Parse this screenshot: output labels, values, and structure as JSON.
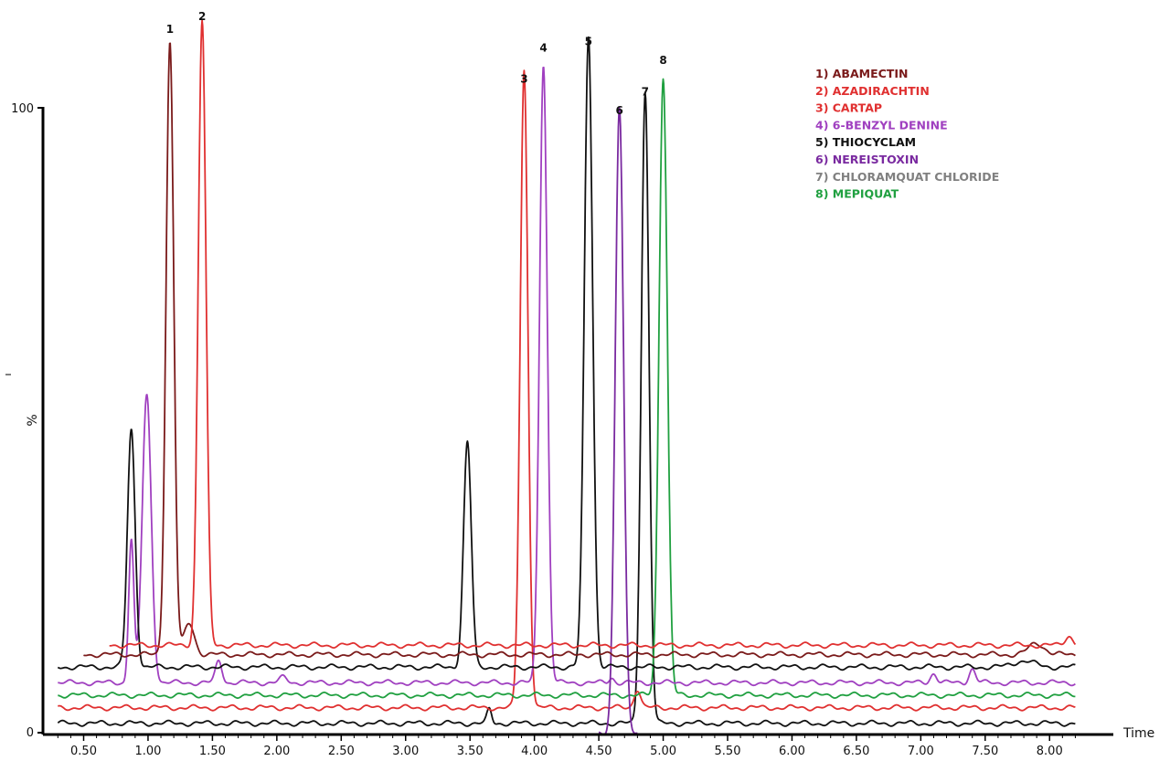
{
  "chart_data": {
    "type": "line",
    "xlabel": "Time",
    "ylabel": "%",
    "xlim": [
      0.3,
      8.2
    ],
    "ylim": [
      0,
      100
    ],
    "x_ticks": [
      "0.50",
      "1.00",
      "1.50",
      "2.00",
      "2.50",
      "3.00",
      "3.50",
      "4.00",
      "4.50",
      "5.00",
      "5.50",
      "6.00",
      "6.50",
      "7.00",
      "7.50",
      "8.00"
    ],
    "y_ticks": [
      "0",
      "100"
    ],
    "grid": false,
    "legend_position": "top-right",
    "legend": [
      {
        "label": "1) ABAMECTIN",
        "color": "#7a1a1a"
      },
      {
        "label": "2) AZADIRACHTIN",
        "color": "#e03030"
      },
      {
        "label": "3) CARTAP",
        "color": "#e03030"
      },
      {
        "label": "4) 6-BENZYL DENINE",
        "color": "#a040c0"
      },
      {
        "label": "5) THIOCYCLAM",
        "color": "#111111"
      },
      {
        "label": "6) NEREISTOXIN",
        "color": "#7a2aa0"
      },
      {
        "label": "7) CHLORAMQUAT CHLORIDE",
        "color": "#808080"
      },
      {
        "label": "8) MEPIQUAT",
        "color": "#20a040"
      }
    ],
    "peak_labels": [
      {
        "label": "1",
        "x": 1.17,
        "y": 112
      },
      {
        "label": "2",
        "x": 1.42,
        "y": 114
      },
      {
        "label": "3",
        "x": 3.92,
        "y": 104
      },
      {
        "label": "4",
        "x": 4.07,
        "y": 109
      },
      {
        "label": "5",
        "x": 4.42,
        "y": 110
      },
      {
        "label": "6",
        "x": 4.66,
        "y": 99
      },
      {
        "label": "7",
        "x": 4.86,
        "y": 102
      },
      {
        "label": "8",
        "x": 5.0,
        "y": 107
      }
    ],
    "series": [
      {
        "color": "#111111",
        "baseline": 1.5,
        "start": 0.3,
        "end": 8.2,
        "peaks": [
          [
            3.65,
            2.2,
            0.018
          ],
          [
            4.86,
            101,
            0.03
          ]
        ]
      },
      {
        "color": "#e03030",
        "baseline": 4.0,
        "start": 0.3,
        "end": 8.2,
        "peaks": [
          [
            3.92,
            102,
            0.03
          ],
          [
            4.8,
            3.0,
            0.025
          ]
        ]
      },
      {
        "color": "#20a040",
        "baseline": 6.0,
        "start": 0.3,
        "end": 8.2,
        "peaks": [
          [
            5.0,
            99,
            0.032
          ]
        ]
      },
      {
        "color": "#a040c0",
        "baseline": 8.0,
        "start": 0.3,
        "end": 8.2,
        "peaks": [
          [
            0.87,
            23,
            0.02
          ],
          [
            0.99,
            46,
            0.035
          ],
          [
            1.55,
            3.5,
            0.025
          ],
          [
            2.05,
            0.8,
            0.03
          ],
          [
            4.07,
            99,
            0.03
          ],
          [
            4.6,
            0.8,
            0.02
          ],
          [
            7.1,
            1.5,
            0.025
          ],
          [
            7.4,
            2.2,
            0.025
          ]
        ]
      },
      {
        "color": "#7a2aa0",
        "baseline": 0.0,
        "start": 4.5,
        "end": 4.8,
        "peaks": [
          [
            4.66,
            100,
            0.032
          ]
        ]
      },
      {
        "color": "#111111",
        "baseline": 10.5,
        "start": 0.3,
        "end": 8.2,
        "peaks": [
          [
            0.87,
            38,
            0.03
          ],
          [
            3.48,
            36,
            0.03
          ],
          [
            4.42,
            101,
            0.032
          ],
          [
            7.8,
            1.0,
            0.08
          ]
        ]
      },
      {
        "color": "#7a1a1a",
        "baseline": 12.5,
        "start": 0.5,
        "end": 8.2,
        "peaks": [
          [
            1.17,
            98,
            0.03
          ],
          [
            1.32,
            5.0,
            0.04
          ],
          [
            7.9,
            1.8,
            0.06
          ]
        ]
      },
      {
        "color": "#e03030",
        "baseline": 14.0,
        "start": 0.7,
        "end": 8.2,
        "peaks": [
          [
            1.42,
            100,
            0.03
          ],
          [
            8.15,
            1.5,
            0.03
          ]
        ]
      }
    ]
  }
}
